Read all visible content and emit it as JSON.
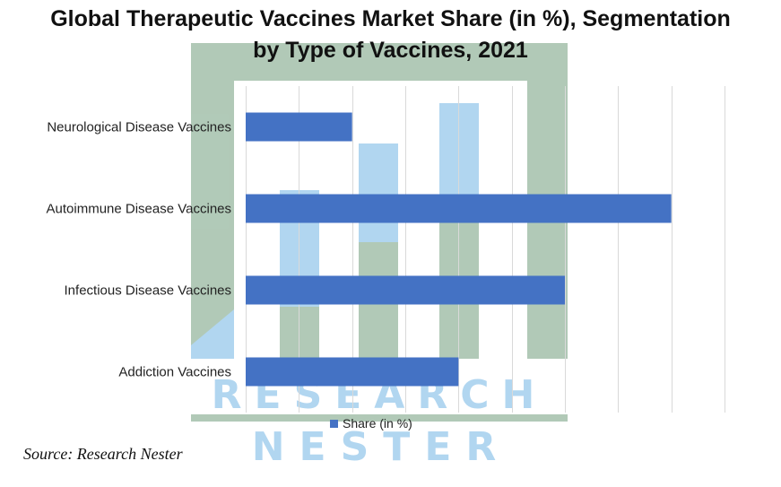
{
  "title": {
    "line1": "Global Therapeutic Vaccines Market Share (in %), Segmentation",
    "line2": "by Type of Vaccines, 2021"
  },
  "watermark": {
    "line1": "RESEARCH",
    "line2": "NESTER",
    "colors": {
      "green": "#a9c4b0",
      "blue": "#a9d2ef"
    }
  },
  "source": "Source: Research Nester",
  "chart_data": {
    "type": "bar",
    "orientation": "horizontal",
    "categories": [
      "Neurological Disease Vaccines",
      "Autoimmune Disease Vaccines",
      "Infectious Disease Vaccines",
      "Addiction Vaccines"
    ],
    "series": [
      {
        "name": "Share (in %)",
        "values": [
          10,
          40,
          30,
          20
        ],
        "color": "#4472c4"
      }
    ],
    "xlim": [
      0,
      45
    ],
    "x_grid_step": 5,
    "grid": true,
    "x_tick_labels_shown": false,
    "legend": "bottom"
  }
}
